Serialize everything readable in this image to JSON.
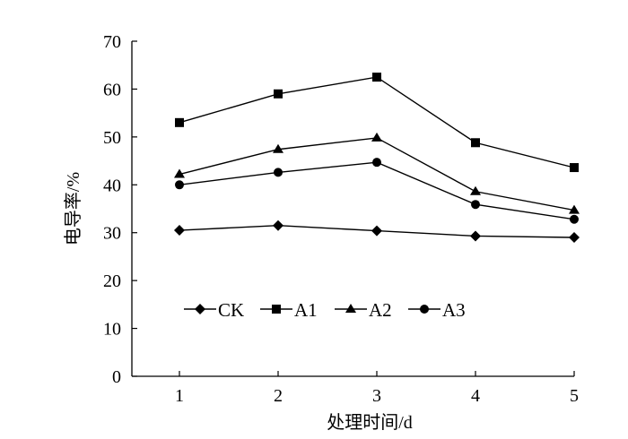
{
  "chart_data": {
    "type": "line",
    "title": "",
    "xlabel": "处理时间/d",
    "ylabel": "电导率/%",
    "x": [
      1,
      2,
      3,
      4,
      5
    ],
    "xticks": [
      "1",
      "2",
      "3",
      "4",
      "5"
    ],
    "yticks": [
      "0",
      "10",
      "20",
      "30",
      "40",
      "50",
      "60",
      "70"
    ],
    "ylim": [
      0,
      70
    ],
    "grid": false,
    "legend_position": "bottom-left-inside",
    "series": [
      {
        "name": "CK",
        "marker": "diamond",
        "values": [
          30.5,
          31.5,
          30.4,
          29.3,
          29.0
        ]
      },
      {
        "name": "A1",
        "marker": "square",
        "values": [
          53.0,
          59.0,
          62.5,
          48.8,
          43.6
        ]
      },
      {
        "name": "A2",
        "marker": "triangle",
        "values": [
          42.2,
          47.4,
          49.8,
          38.6,
          34.7
        ]
      },
      {
        "name": "A3",
        "marker": "circle",
        "values": [
          40.0,
          42.6,
          44.7,
          35.9,
          32.8
        ]
      }
    ],
    "colors": {
      "line": "#000000",
      "background": "#ffffff"
    }
  }
}
